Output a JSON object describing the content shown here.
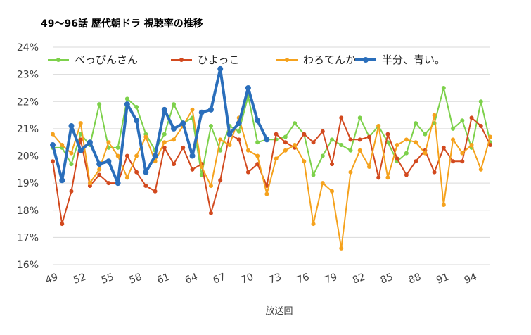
{
  "chart_data": {
    "type": "line",
    "title": "49～96話 歴代朝ドラ 視聴率の推移",
    "xlabel": "放送回",
    "ylabel": "",
    "ylim": [
      16,
      24
    ],
    "yticks": [
      "16%",
      "17%",
      "18%",
      "19%",
      "20%",
      "21%",
      "22%",
      "23%",
      "24%"
    ],
    "x_start": 49,
    "x_end": 96,
    "xticks": [
      49,
      52,
      55,
      58,
      61,
      64,
      67,
      70,
      73,
      76,
      79,
      82,
      85,
      88,
      91,
      94
    ],
    "xtick_labels": [
      "49",
      "52",
      "55",
      "58",
      "61",
      "64",
      "67",
      "70",
      "73",
      "76",
      "79",
      "82",
      "85",
      "88",
      "91",
      "94"
    ],
    "grid": true,
    "legend_position": "top",
    "series": [
      {
        "name": "べっぴんさん",
        "color": "#7dd14b",
        "line_width": 2,
        "marker_radius": 3,
        "values": [
          20.3,
          20.3,
          19.7,
          20.8,
          20.4,
          21.9,
          20.3,
          20.3,
          22.1,
          21.8,
          20.8,
          20.2,
          20.8,
          21.9,
          21.2,
          21.4,
          19.3,
          21.1,
          20.2,
          21.1,
          20.9,
          22.2,
          20.5,
          20.6,
          20.6,
          20.7,
          21.2,
          20.8,
          19.3,
          20.0,
          20.6,
          20.4,
          20.2,
          21.4,
          20.7,
          21.1,
          20.5,
          19.8,
          20.1,
          21.2,
          20.8,
          21.2,
          22.5,
          21.0,
          21.3,
          20.3,
          22.0,
          20.5
        ]
      },
      {
        "name": "ひよっこ",
        "color": "#d2491e",
        "line_width": 2,
        "marker_radius": 3,
        "values": [
          19.8,
          17.5,
          18.7,
          20.6,
          18.9,
          19.3,
          19.0,
          19.0,
          20.0,
          19.4,
          18.9,
          18.7,
          20.3,
          19.7,
          20.3,
          19.5,
          19.7,
          17.9,
          19.1,
          20.8,
          20.6,
          19.4,
          19.7,
          18.9,
          20.8,
          20.5,
          20.3,
          20.8,
          20.5,
          20.9,
          19.7,
          21.4,
          20.6,
          20.6,
          20.7,
          19.2,
          20.8,
          19.9,
          19.3,
          19.8,
          20.2,
          19.4,
          20.3,
          19.8,
          19.8,
          21.4,
          21.1,
          20.4
        ]
      },
      {
        "name": "わろてんか",
        "color": "#f5a21d",
        "line_width": 2,
        "marker_radius": 3,
        "values": [
          20.8,
          20.4,
          20.1,
          21.2,
          19.0,
          19.5,
          20.5,
          20.0,
          19.2,
          20.0,
          20.7,
          19.8,
          20.5,
          20.6,
          21.1,
          21.7,
          19.6,
          18.9,
          20.6,
          20.4,
          21.4,
          20.2,
          20.0,
          18.6,
          19.9,
          20.2,
          20.4,
          19.8,
          17.5,
          19.0,
          18.7,
          16.6,
          19.4,
          20.2,
          19.6,
          21.1,
          19.2,
          20.4,
          20.6,
          20.5,
          20.1,
          21.5,
          18.2,
          20.6,
          20.1,
          20.4,
          19.5,
          20.7
        ]
      },
      {
        "name": "半分、青い。",
        "color": "#2a6ebb",
        "line_width": 4,
        "marker_radius": 4,
        "values": [
          20.4,
          19.1,
          21.1,
          20.2,
          20.5,
          19.7,
          19.8,
          19.0,
          21.9,
          21.3,
          19.4,
          20.0,
          21.7,
          21.0,
          21.2,
          20.0,
          21.6,
          21.7,
          23.2,
          20.8,
          21.2,
          22.5,
          21.3,
          20.6
        ]
      }
    ]
  }
}
